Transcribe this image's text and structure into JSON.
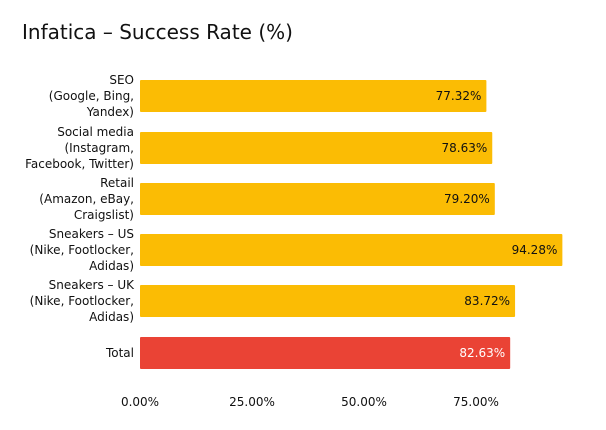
{
  "chart_data": {
    "type": "bar",
    "orientation": "horizontal",
    "title": "Infatica – Success Rate (%)",
    "categories": [
      [
        "SEO",
        "(Google, Bing,",
        "Yandex)"
      ],
      [
        "Social media",
        "(Instagram,",
        "Facebook, Twitter)"
      ],
      [
        "Retail",
        "(Amazon, eBay,",
        "Craigslist)"
      ],
      [
        "Sneakers – US",
        "(Nike, Footlocker,",
        "Adidas)"
      ],
      [
        "Sneakers – UK",
        "(Nike, Footlocker,",
        "Adidas)"
      ],
      [
        "Total"
      ]
    ],
    "values": [
      77.32,
      78.63,
      79.2,
      94.28,
      83.72,
      82.63
    ],
    "value_labels": [
      "77.32%",
      "78.63%",
      "79.20%",
      "94.28%",
      "83.72%",
      "82.63%"
    ],
    "bar_colors": [
      "#fbbc04",
      "#fbbc04",
      "#fbbc04",
      "#fbbc04",
      "#fbbc04",
      "#ea4335"
    ],
    "value_label_colors": [
      "#111111",
      "#111111",
      "#111111",
      "#111111",
      "#111111",
      "#ffffff"
    ],
    "x_ticks": [
      0,
      25,
      50,
      75
    ],
    "x_tick_labels": [
      "0.00%",
      "25.00%",
      "50.00%",
      "75.00%"
    ],
    "xlim": [
      0,
      100
    ],
    "grid": false,
    "legend": "none"
  }
}
